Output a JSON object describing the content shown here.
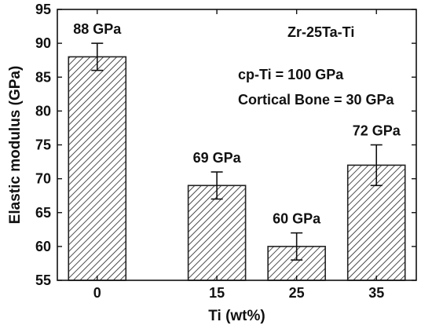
{
  "chart_data": {
    "type": "bar",
    "title": "",
    "xlabel": "Ti (wt%)",
    "ylabel": "Elastic modulus (GPa)",
    "x_tick_labels": [
      "0",
      "15",
      "25",
      "35"
    ],
    "x_values": [
      0,
      15,
      25,
      35
    ],
    "xlim": [
      -5,
      40
    ],
    "values": [
      88,
      69,
      60,
      72
    ],
    "errors": [
      2,
      2,
      2,
      3
    ],
    "data_labels": [
      "88 GPa",
      "69 GPa",
      "60 GPa",
      "72 GPa"
    ],
    "ylim": [
      55,
      95
    ],
    "yticks": [
      55,
      60,
      65,
      70,
      75,
      80,
      85,
      90,
      95
    ],
    "bar_pattern": "diagonal-hatch",
    "grid": false,
    "annotations": {
      "alloy": "Zr-25Ta-Ti",
      "cp_ti": "cp-Ti = 100 GPa",
      "bone": "Cortical Bone = 30 GPa"
    }
  },
  "colors": {
    "bar_fill": "#ffffff",
    "hatch": "#222222",
    "axis": "#111111"
  }
}
